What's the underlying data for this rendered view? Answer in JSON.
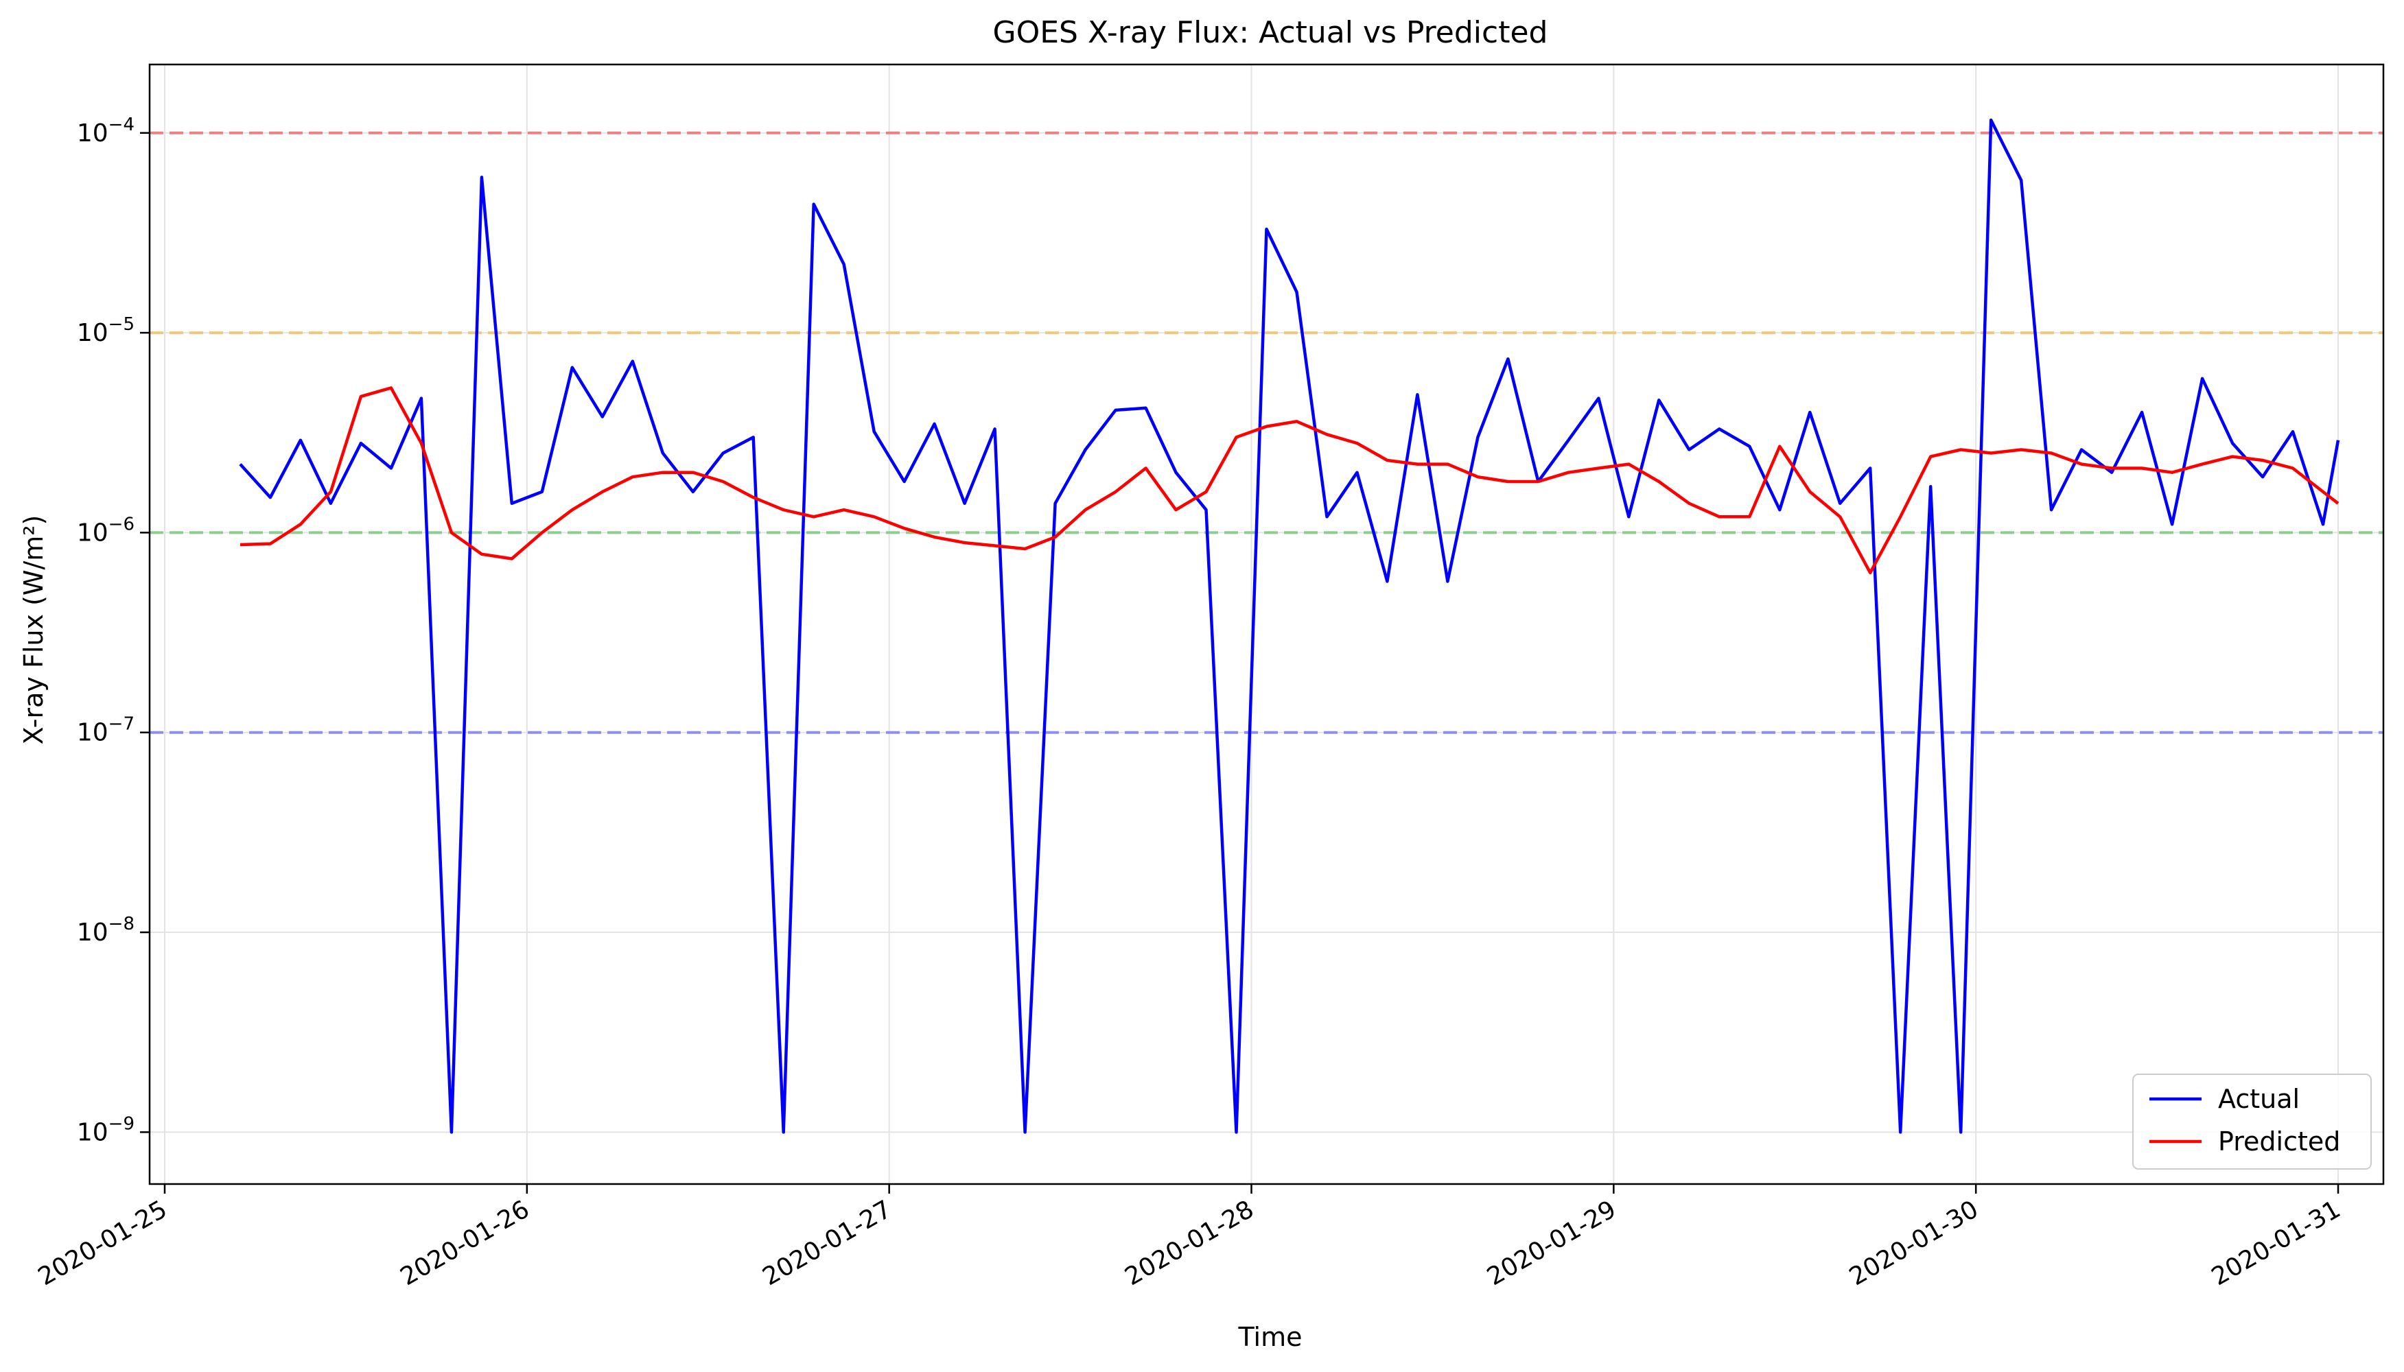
{
  "chart_data": {
    "type": "line",
    "title": "GOES X-ray Flux: Actual vs Predicted",
    "xlabel": "Time",
    "ylabel": "X-ray Flux (W/m²)",
    "yscale": "log",
    "ylim": [
      5.5e-10,
      0.00022
    ],
    "xlim": [
      "2020-01-24T23:00",
      "2020-01-31T03:00"
    ],
    "x_ticks": [
      "2020-01-25",
      "2020-01-26",
      "2020-01-27",
      "2020-01-28",
      "2020-01-29",
      "2020-01-30",
      "2020-01-31"
    ],
    "y_ticks": [
      {
        "value": 1e-09,
        "base": "10",
        "exp": "−9"
      },
      {
        "value": 1e-08,
        "base": "10",
        "exp": "−8"
      },
      {
        "value": 1e-07,
        "base": "10",
        "exp": "−7"
      },
      {
        "value": 1e-06,
        "base": "10",
        "exp": "−6"
      },
      {
        "value": 1e-05,
        "base": "10",
        "exp": "−5"
      },
      {
        "value": 0.0001,
        "base": "10",
        "exp": "−4"
      }
    ],
    "grid": true,
    "legend_position": "bottom-right",
    "reference_lines": [
      {
        "value": 0.0001,
        "color": "#f08080"
      },
      {
        "value": 1e-05,
        "color": "#f5c77a"
      },
      {
        "value": 1e-06,
        "color": "#8fcc8f"
      },
      {
        "value": 1e-07,
        "color": "#8f8ff0"
      }
    ],
    "series": [
      {
        "name": "Actual",
        "color": "#0000ff",
        "x": [
          "2020-01-25T05:00",
          "2020-01-25T07:00",
          "2020-01-25T09:00",
          "2020-01-25T11:00",
          "2020-01-25T13:00",
          "2020-01-25T15:00",
          "2020-01-25T17:00",
          "2020-01-25T19:00",
          "2020-01-25T21:00",
          "2020-01-25T23:00",
          "2020-01-26T01:00",
          "2020-01-26T03:00",
          "2020-01-26T05:00",
          "2020-01-26T07:00",
          "2020-01-26T09:00",
          "2020-01-26T11:00",
          "2020-01-26T13:00",
          "2020-01-26T15:00",
          "2020-01-26T17:00",
          "2020-01-26T19:00",
          "2020-01-26T21:00",
          "2020-01-26T23:00",
          "2020-01-27T01:00",
          "2020-01-27T03:00",
          "2020-01-27T05:00",
          "2020-01-27T07:00",
          "2020-01-27T09:00",
          "2020-01-27T11:00",
          "2020-01-27T13:00",
          "2020-01-27T15:00",
          "2020-01-27T17:00",
          "2020-01-27T19:00",
          "2020-01-27T21:00",
          "2020-01-27T23:00",
          "2020-01-28T01:00",
          "2020-01-28T03:00",
          "2020-01-28T05:00",
          "2020-01-28T07:00",
          "2020-01-28T09:00",
          "2020-01-28T11:00",
          "2020-01-28T13:00",
          "2020-01-28T15:00",
          "2020-01-28T17:00",
          "2020-01-28T19:00",
          "2020-01-28T21:00",
          "2020-01-28T23:00",
          "2020-01-29T01:00",
          "2020-01-29T03:00",
          "2020-01-29T05:00",
          "2020-01-29T07:00",
          "2020-01-29T09:00",
          "2020-01-29T11:00",
          "2020-01-29T13:00",
          "2020-01-29T15:00",
          "2020-01-29T17:00",
          "2020-01-29T19:00",
          "2020-01-29T21:00",
          "2020-01-29T23:00",
          "2020-01-30T01:00",
          "2020-01-30T03:00",
          "2020-01-30T05:00",
          "2020-01-30T07:00",
          "2020-01-30T09:00",
          "2020-01-30T11:00",
          "2020-01-30T13:00",
          "2020-01-30T15:00",
          "2020-01-30T17:00",
          "2020-01-30T19:00",
          "2020-01-30T21:00",
          "2020-01-30T23:00",
          "2020-01-31T00:00"
        ],
        "y": [
          2.2e-06,
          1.5e-06,
          2.9e-06,
          1.4e-06,
          2.8e-06,
          2.1e-06,
          4.7e-06,
          1e-09,
          6e-05,
          1.4e-06,
          1.6e-06,
          6.7e-06,
          3.8e-06,
          7.2e-06,
          2.5e-06,
          1.6e-06,
          2.5e-06,
          3e-06,
          1e-09,
          4.4e-05,
          2.2e-05,
          3.2e-06,
          1.8e-06,
          3.5e-06,
          1.4e-06,
          3.3e-06,
          1e-09,
          1.4e-06,
          2.6e-06,
          4.1e-06,
          4.2e-06,
          2e-06,
          1.3e-06,
          1e-09,
          3.3e-05,
          1.6e-05,
          1.2e-06,
          2e-06,
          5.7e-07,
          4.9e-06,
          5.7e-07,
          3e-06,
          7.4e-06,
          1.8e-06,
          2.9e-06,
          4.7e-06,
          1.2e-06,
          4.6e-06,
          2.6e-06,
          3.3e-06,
          2.7e-06,
          1.3e-06,
          4e-06,
          1.4e-06,
          2.1e-06,
          1e-09,
          1.7e-06,
          1e-09,
          0.000116,
          5.8e-05,
          1.3e-06,
          2.6e-06,
          2e-06,
          4e-06,
          1.1e-06,
          5.9e-06,
          2.8e-06,
          1.9e-06,
          3.2e-06,
          1.1e-06,
          2.9e-06
        ]
      },
      {
        "name": "Predicted",
        "color": "#ff0000",
        "x": [
          "2020-01-25T05:00",
          "2020-01-25T07:00",
          "2020-01-25T09:00",
          "2020-01-25T11:00",
          "2020-01-25T13:00",
          "2020-01-25T15:00",
          "2020-01-25T17:00",
          "2020-01-25T19:00",
          "2020-01-25T21:00",
          "2020-01-25T23:00",
          "2020-01-26T01:00",
          "2020-01-26T03:00",
          "2020-01-26T05:00",
          "2020-01-26T07:00",
          "2020-01-26T09:00",
          "2020-01-26T11:00",
          "2020-01-26T13:00",
          "2020-01-26T15:00",
          "2020-01-26T17:00",
          "2020-01-26T19:00",
          "2020-01-26T21:00",
          "2020-01-26T23:00",
          "2020-01-27T01:00",
          "2020-01-27T03:00",
          "2020-01-27T05:00",
          "2020-01-27T07:00",
          "2020-01-27T09:00",
          "2020-01-27T11:00",
          "2020-01-27T13:00",
          "2020-01-27T15:00",
          "2020-01-27T17:00",
          "2020-01-27T19:00",
          "2020-01-27T21:00",
          "2020-01-27T23:00",
          "2020-01-28T01:00",
          "2020-01-28T03:00",
          "2020-01-28T05:00",
          "2020-01-28T07:00",
          "2020-01-28T09:00",
          "2020-01-28T11:00",
          "2020-01-28T13:00",
          "2020-01-28T15:00",
          "2020-01-28T17:00",
          "2020-01-28T19:00",
          "2020-01-28T21:00",
          "2020-01-28T23:00",
          "2020-01-29T01:00",
          "2020-01-29T03:00",
          "2020-01-29T05:00",
          "2020-01-29T07:00",
          "2020-01-29T09:00",
          "2020-01-29T11:00",
          "2020-01-29T13:00",
          "2020-01-29T15:00",
          "2020-01-29T17:00",
          "2020-01-29T19:00",
          "2020-01-29T21:00",
          "2020-01-29T23:00",
          "2020-01-30T01:00",
          "2020-01-30T03:00",
          "2020-01-30T05:00",
          "2020-01-30T07:00",
          "2020-01-30T09:00",
          "2020-01-30T11:00",
          "2020-01-30T13:00",
          "2020-01-30T15:00",
          "2020-01-30T17:00",
          "2020-01-30T19:00",
          "2020-01-30T21:00",
          "2020-01-30T23:00",
          "2020-01-31T00:00"
        ],
        "y": [
          8.7e-07,
          8.8e-07,
          1.1e-06,
          1.6e-06,
          4.8e-06,
          5.3e-06,
          2.8e-06,
          1e-06,
          7.8e-07,
          7.4e-07,
          1e-06,
          1.3e-06,
          1.6e-06,
          1.9e-06,
          2e-06,
          2e-06,
          1.8e-06,
          1.5e-06,
          1.3e-06,
          1.2e-06,
          1.3e-06,
          1.2e-06,
          1.05e-06,
          9.5e-07,
          8.9e-07,
          8.6e-07,
          8.3e-07,
          9.5e-07,
          1.3e-06,
          1.6e-06,
          2.1e-06,
          1.3e-06,
          1.6e-06,
          3e-06,
          3.4e-06,
          3.6e-06,
          3.1e-06,
          2.8e-06,
          2.3e-06,
          2.2e-06,
          2.2e-06,
          1.9e-06,
          1.8e-06,
          1.8e-06,
          2e-06,
          2.1e-06,
          2.2e-06,
          1.8e-06,
          1.4e-06,
          1.2e-06,
          1.2e-06,
          2.7e-06,
          1.6e-06,
          1.2e-06,
          6.3e-07,
          1.2e-06,
          2.4e-06,
          2.6e-06,
          2.5e-06,
          2.6e-06,
          2.5e-06,
          2.2e-06,
          2.1e-06,
          2.1e-06,
          2e-06,
          2.2e-06,
          2.4e-06,
          2.3e-06,
          2.1e-06,
          1.6e-06,
          1.4e-06
        ]
      }
    ]
  }
}
